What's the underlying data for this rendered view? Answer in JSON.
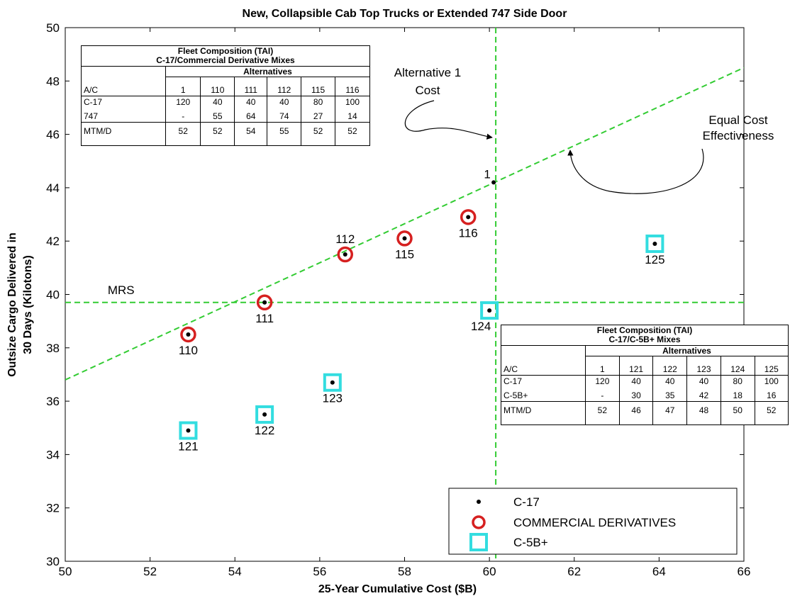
{
  "chart_data": {
    "type": "scatter",
    "title": "New, Collapsible Cab Top Trucks or Extended 747 Side Door",
    "xlabel": "25-Year Cumulative Cost ($B)",
    "ylabel_lines": [
      "Outsize Cargo Delivered in",
      "30 Days (Kilotons)"
    ],
    "xlim": [
      50,
      66
    ],
    "ylim": [
      30,
      50
    ],
    "xticks": [
      50,
      52,
      54,
      56,
      58,
      60,
      62,
      64,
      66
    ],
    "yticks": [
      30,
      32,
      34,
      36,
      38,
      40,
      42,
      44,
      46,
      48,
      50
    ],
    "series": [
      {
        "name": "C-17",
        "marker": "dot",
        "color": "#000000",
        "points": [
          {
            "x": 52.9,
            "y": 38.5
          },
          {
            "x": 54.7,
            "y": 39.7
          },
          {
            "x": 56.6,
            "y": 41.5
          },
          {
            "x": 58.0,
            "y": 42.1
          },
          {
            "x": 59.5,
            "y": 42.9
          },
          {
            "x": 60.1,
            "y": 44.2
          },
          {
            "x": 52.9,
            "y": 34.9
          },
          {
            "x": 54.7,
            "y": 35.5
          },
          {
            "x": 56.3,
            "y": 36.7
          },
          {
            "x": 60.0,
            "y": 39.4
          },
          {
            "x": 63.9,
            "y": 41.9
          }
        ]
      },
      {
        "name": "COMMERCIAL DERIVATIVES",
        "marker": "circle",
        "color": "#d62020",
        "points": [
          {
            "x": 52.9,
            "y": 38.5,
            "label": "110"
          },
          {
            "x": 54.7,
            "y": 39.7,
            "label": "111"
          },
          {
            "x": 56.6,
            "y": 41.5,
            "label": "112"
          },
          {
            "x": 58.0,
            "y": 42.1,
            "label": "115"
          },
          {
            "x": 59.5,
            "y": 42.9,
            "label": "116"
          }
        ]
      },
      {
        "name": "C-5B+",
        "marker": "square",
        "color": "#33dde0",
        "points": [
          {
            "x": 52.9,
            "y": 34.9,
            "label": "121"
          },
          {
            "x": 54.7,
            "y": 35.5,
            "label": "122"
          },
          {
            "x": 56.3,
            "y": 36.7,
            "label": "123"
          },
          {
            "x": 60.0,
            "y": 39.4,
            "label": "124"
          },
          {
            "x": 63.9,
            "y": 41.9,
            "label": "125"
          }
        ]
      }
    ],
    "point_1_label": "1",
    "reference_lines": {
      "mrs": {
        "y": 39.7,
        "label": "MRS"
      },
      "alt1_cost": {
        "x": 60.15
      },
      "equal_cost": {
        "x1": 50,
        "y1": 36.8,
        "x2": 66,
        "y2": 48.5
      }
    },
    "annotations": {
      "alt1_cost": [
        "Alternative 1",
        "Cost"
      ],
      "equal_cost": [
        "Equal Cost",
        "Effectiveness"
      ]
    },
    "legend_position": "bottom-right",
    "grid": false,
    "colors": {
      "ref_line": "#33cc33"
    }
  },
  "tables": {
    "commercial": {
      "title_lines": [
        "Fleet Composition (TAI)",
        "C-17/Commercial Derivative Mixes"
      ],
      "alternatives_label": "Alternatives",
      "header": [
        "A/C",
        "1",
        "110",
        "111",
        "112",
        "115",
        "116"
      ],
      "rows": [
        [
          "C-17",
          "120",
          "40",
          "40",
          "40",
          "80",
          "100"
        ],
        [
          "747",
          "-",
          "55",
          "64",
          "74",
          "27",
          "14"
        ],
        [
          "MTM/D",
          "52",
          "52",
          "54",
          "55",
          "52",
          "52"
        ]
      ]
    },
    "c5": {
      "title_lines": [
        "Fleet Composition (TAI)",
        "C-17/C-5B+ Mixes"
      ],
      "alternatives_label": "Alternatives",
      "header": [
        "A/C",
        "1",
        "121",
        "122",
        "123",
        "124",
        "125"
      ],
      "rows": [
        [
          "C-17",
          "120",
          "40",
          "40",
          "40",
          "80",
          "100"
        ],
        [
          "C-5B+",
          "-",
          "30",
          "35",
          "42",
          "18",
          "16"
        ],
        [
          "MTM/D",
          "52",
          "46",
          "47",
          "48",
          "50",
          "52"
        ]
      ]
    }
  }
}
